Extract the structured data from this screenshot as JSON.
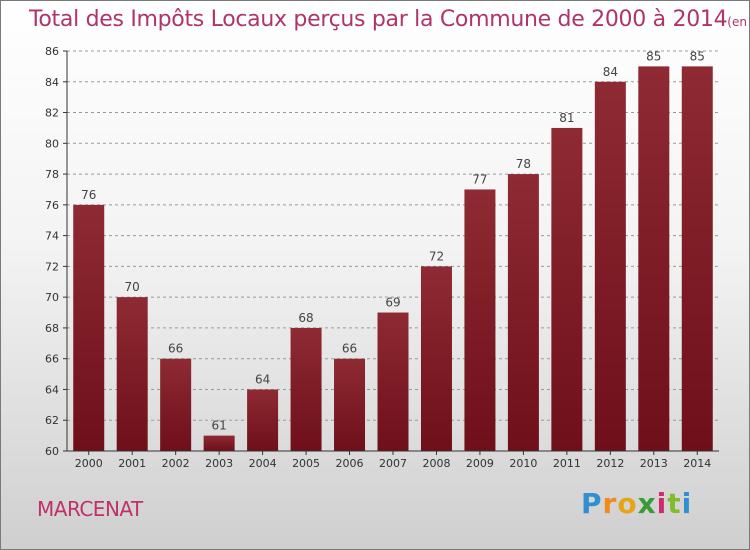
{
  "title": "Total des Impôts Locaux perçus par la Commune de 2000 à 2014",
  "title_unit": "(en milliers d'€)",
  "commune": "MARCENAT",
  "logo": {
    "letters": [
      "P",
      "r",
      "o",
      "x",
      "i",
      "t",
      "i"
    ],
    "colors": [
      "#2f8fd1",
      "#f08a1c",
      "#e8a419",
      "#3a9a3a",
      "#cf2a6b",
      "#7fbd2e",
      "#2f8fd1"
    ]
  },
  "colors": {
    "bar": "#6e0f1a",
    "bar_light": "#8e2a33",
    "axis": "#333333",
    "grid": "#999999"
  },
  "chart_data": {
    "type": "bar",
    "categories": [
      "2000",
      "2001",
      "2002",
      "2003",
      "2004",
      "2005",
      "2006",
      "2007",
      "2008",
      "2009",
      "2010",
      "2011",
      "2012",
      "2013",
      "2014"
    ],
    "values": [
      76,
      70,
      66,
      61,
      64,
      68,
      66,
      69,
      72,
      77,
      78,
      81,
      84,
      85,
      85
    ],
    "data_labels": [
      "76",
      "70",
      "66",
      "61",
      "64",
      "68",
      "66",
      "69",
      "72",
      "77",
      "78",
      "81",
      "84",
      "85",
      "85"
    ],
    "ylim": [
      60,
      86
    ],
    "yticks": [
      "60",
      "62",
      "64",
      "66",
      "68",
      "70",
      "72",
      "74",
      "76",
      "78",
      "80",
      "82",
      "84",
      "86"
    ],
    "grid": true,
    "xlabel": "",
    "ylabel": ""
  }
}
